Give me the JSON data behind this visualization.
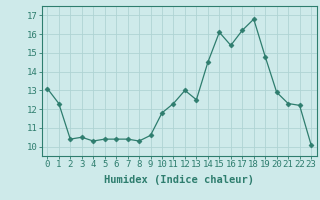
{
  "x": [
    0,
    1,
    2,
    3,
    4,
    5,
    6,
    7,
    8,
    9,
    10,
    11,
    12,
    13,
    14,
    15,
    16,
    17,
    18,
    19,
    20,
    21,
    22,
    23
  ],
  "y": [
    13.1,
    12.3,
    10.4,
    10.5,
    10.3,
    10.4,
    10.4,
    10.4,
    10.3,
    10.6,
    11.8,
    12.3,
    13.0,
    12.5,
    14.5,
    16.1,
    15.4,
    16.2,
    16.8,
    14.8,
    12.9,
    12.3,
    12.2,
    10.1
  ],
  "line_color": "#2e7d6e",
  "marker": "D",
  "marker_size": 2.5,
  "bg_color": "#ceeaea",
  "grid_color": "#afd4d4",
  "xlabel": "Humidex (Indice chaleur)",
  "ylim": [
    9.5,
    17.5
  ],
  "xlim": [
    -0.5,
    23.5
  ],
  "yticks": [
    10,
    11,
    12,
    13,
    14,
    15,
    16,
    17
  ],
  "xticks": [
    0,
    1,
    2,
    3,
    4,
    5,
    6,
    7,
    8,
    9,
    10,
    11,
    12,
    13,
    14,
    15,
    16,
    17,
    18,
    19,
    20,
    21,
    22,
    23
  ],
  "tick_color": "#2e7d6e",
  "label_fontsize": 6.5,
  "xlabel_fontsize": 7.5,
  "axis_color": "#2e7d6e"
}
